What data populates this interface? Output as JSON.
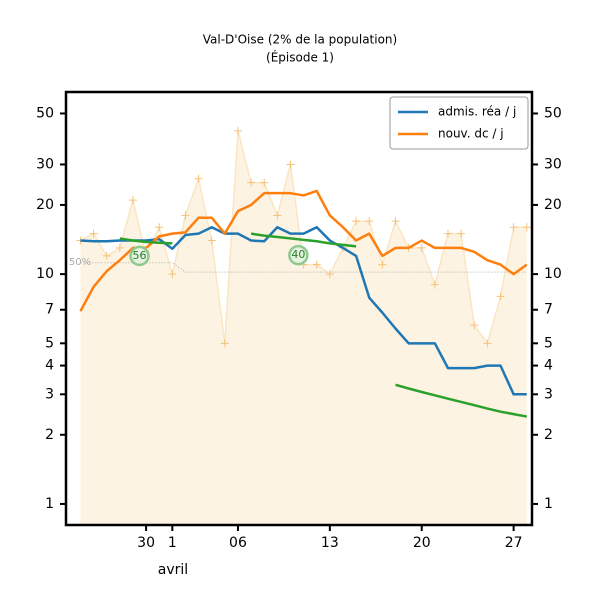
{
  "chart_data": {
    "type": "line",
    "title": "Val-D'Oise (2% de la population)",
    "subtitle": "(Épisode 1)",
    "xlabel": "avril",
    "x": [
      25,
      26,
      27,
      28,
      29,
      30,
      31,
      32,
      33,
      34,
      35,
      36,
      37,
      38,
      39,
      40,
      41,
      42,
      43,
      44,
      45,
      46,
      47,
      48,
      49,
      50,
      51,
      52,
      53,
      54,
      55,
      56,
      57,
      58,
      59
    ],
    "xlim": [
      23.9,
      59.4
    ],
    "xticks": [
      {
        "value": 30,
        "label": "30"
      },
      {
        "value": 32,
        "label": "1"
      },
      {
        "value": 37,
        "label": "06"
      },
      {
        "value": 44,
        "label": "13"
      },
      {
        "value": 51,
        "label": "20"
      },
      {
        "value": 58,
        "label": "27"
      }
    ],
    "ylim": [
      0.81,
      62
    ],
    "yticks": [
      1,
      2,
      3,
      4,
      5,
      7,
      10,
      20,
      30,
      50
    ],
    "log_y": true,
    "legend": "upper right",
    "raw": {
      "color": "#f5c27a",
      "fill": "#fdf3e2",
      "values": [
        14,
        15,
        12,
        13,
        21,
        12,
        16,
        10,
        18,
        26,
        14,
        5,
        42,
        25,
        25,
        18,
        30,
        11,
        11,
        10,
        13,
        17,
        17,
        11,
        17,
        13,
        13,
        9,
        15,
        15,
        6,
        5,
        8,
        16,
        16
      ]
    },
    "reference": {
      "name": "50%",
      "color": "#aaaaaa",
      "values": [
        11.2,
        11.2,
        11.2,
        11.2,
        11.2,
        11.2,
        11.2,
        11.2,
        10.2,
        10.2,
        10.2,
        10.2,
        10.2,
        10.2,
        10.2,
        10.2,
        10.2,
        10.2,
        10.2,
        10.2,
        10.2,
        10.2,
        10.2,
        10.2,
        10.2,
        10.2,
        10.2,
        10.2,
        10.2,
        10.2,
        10.2,
        10.2,
        10.2,
        10.2,
        10.2
      ]
    },
    "series": [
      {
        "name": "admis. réa / j",
        "color": "#1f77b4",
        "values": [
          14,
          13.9,
          13.9,
          14,
          14,
          14,
          14.2,
          12.9,
          14.8,
          15,
          16,
          15,
          15,
          14,
          13.9,
          16,
          15,
          15,
          16,
          14,
          13,
          12,
          7.9,
          6.8,
          5.8,
          5,
          5,
          5,
          3.9,
          3.9,
          3.9,
          4,
          4,
          3,
          3
        ]
      },
      {
        "name": "nouv. dc / j",
        "color": "#ff7f0e",
        "values": [
          6.9,
          8.8,
          10.3,
          11.5,
          13,
          13,
          14.6,
          15,
          15.2,
          17.6,
          17.6,
          15,
          18.8,
          20,
          22.5,
          22.5,
          22.5,
          22,
          23,
          18,
          16,
          14,
          15,
          12,
          13,
          13,
          14,
          13,
          13,
          13,
          12.5,
          11.5,
          11,
          10,
          11
        ]
      }
    ],
    "trend": {
      "color": "#2ca02c",
      "values": [
        null,
        null,
        null,
        14.3,
        14.0,
        13.8,
        13.7,
        13.6,
        null,
        null,
        null,
        null,
        null,
        15,
        14.7,
        14.5,
        14.3,
        14.1,
        13.9,
        13.6,
        13.4,
        13.2,
        null,
        null,
        3.3,
        3.18,
        3.07,
        2.97,
        2.87,
        2.78,
        2.69,
        2.6,
        2.52,
        2.46,
        2.4
      ]
    },
    "annotations": [
      {
        "text": "56",
        "x": 29.5,
        "y": 12
      },
      {
        "text": "40",
        "x": 41.6,
        "y": 12.1
      }
    ]
  }
}
